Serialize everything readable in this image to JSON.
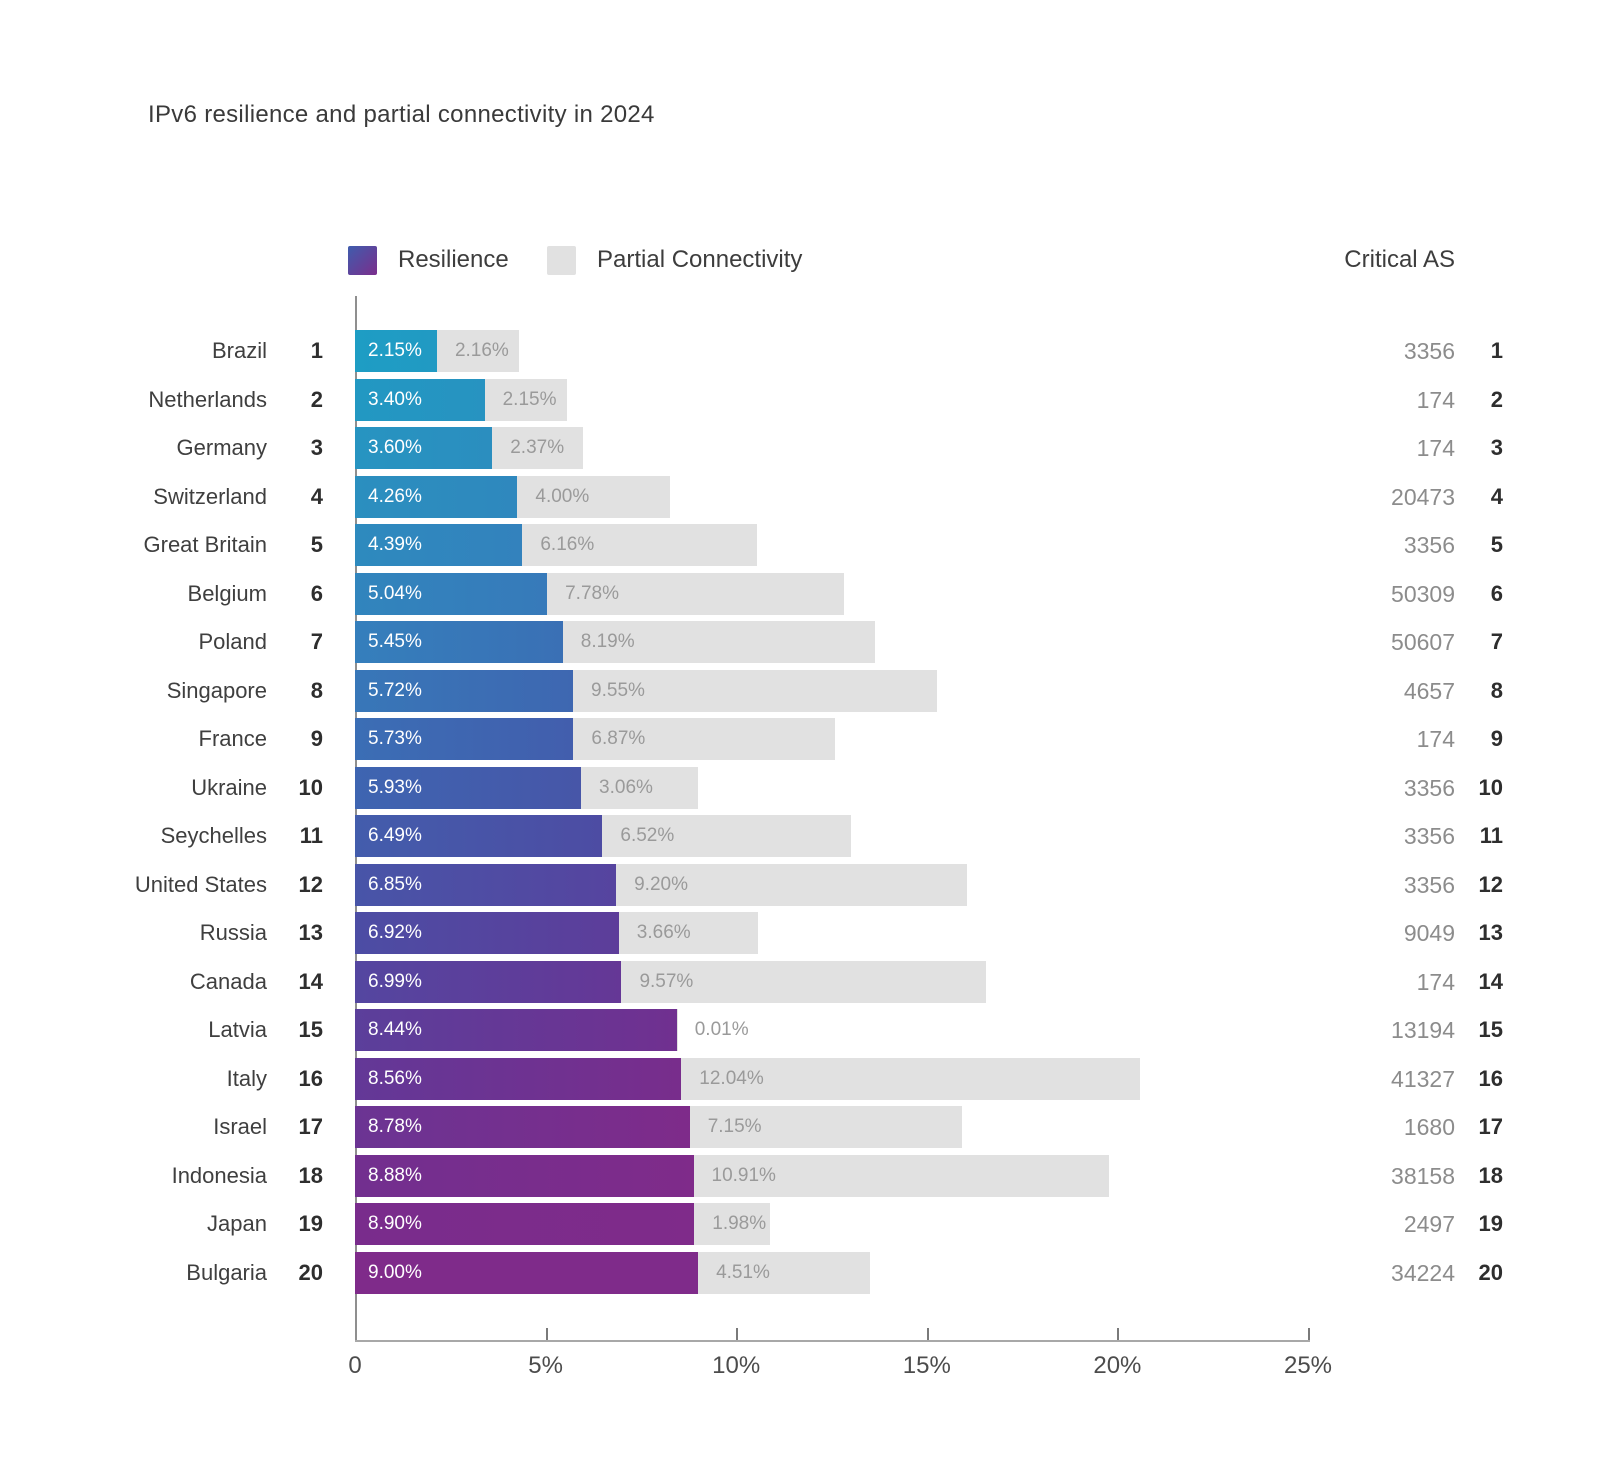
{
  "title": "IPv6 resilience and partial connectivity in 2024",
  "legend": {
    "resilience_label": "Resilience",
    "partial_label": "Partial Connectivity"
  },
  "right_column_header": "Critical AS",
  "colors": {
    "resilience_gradient_stops": [
      {
        "t": 0.0,
        "color": "#1e9dc4"
      },
      {
        "t": 0.16,
        "color": "#2b8fbf"
      },
      {
        "t": 0.32,
        "color": "#357fbc"
      },
      {
        "t": 0.47,
        "color": "#3e66b1"
      },
      {
        "t": 0.63,
        "color": "#4c4da4"
      },
      {
        "t": 0.79,
        "color": "#633897"
      },
      {
        "t": 0.92,
        "color": "#762d8d"
      },
      {
        "t": 1.0,
        "color": "#7f2b8a"
      }
    ],
    "partial_bar": "#e1e1e1",
    "partial_label_text": "#9a9a9a",
    "resilience_label_text": "#ffffff",
    "axis": "#a8a8a8"
  },
  "x_axis": {
    "ticks": [
      "0",
      "5%",
      "10%",
      "15%",
      "20%",
      "25%"
    ],
    "max_percent": 25
  },
  "rows": [
    {
      "country": "Brazil",
      "rank": "1",
      "resilience": 2.15,
      "partial": 2.16,
      "resilience_label": "2.15%",
      "partial_label": "2.16%",
      "critical_as": "3356"
    },
    {
      "country": "Netherlands",
      "rank": "2",
      "resilience": 3.4,
      "partial": 2.15,
      "resilience_label": "3.40%",
      "partial_label": "2.15%",
      "critical_as": "174"
    },
    {
      "country": "Germany",
      "rank": "3",
      "resilience": 3.6,
      "partial": 2.37,
      "resilience_label": "3.60%",
      "partial_label": "2.37%",
      "critical_as": "174"
    },
    {
      "country": "Switzerland",
      "rank": "4",
      "resilience": 4.26,
      "partial": 4.0,
      "resilience_label": "4.26%",
      "partial_label": "4.00%",
      "critical_as": "20473"
    },
    {
      "country": "Great Britain",
      "rank": "5",
      "resilience": 4.39,
      "partial": 6.16,
      "resilience_label": "4.39%",
      "partial_label": "6.16%",
      "critical_as": "3356"
    },
    {
      "country": "Belgium",
      "rank": "6",
      "resilience": 5.04,
      "partial": 7.78,
      "resilience_label": "5.04%",
      "partial_label": "7.78%",
      "critical_as": "50309"
    },
    {
      "country": "Poland",
      "rank": "7",
      "resilience": 5.45,
      "partial": 8.19,
      "resilience_label": "5.45%",
      "partial_label": "8.19%",
      "critical_as": "50607"
    },
    {
      "country": "Singapore",
      "rank": "8",
      "resilience": 5.72,
      "partial": 9.55,
      "resilience_label": "5.72%",
      "partial_label": "9.55%",
      "critical_as": "4657"
    },
    {
      "country": "France",
      "rank": "9",
      "resilience": 5.73,
      "partial": 6.87,
      "resilience_label": "5.73%",
      "partial_label": "6.87%",
      "critical_as": "174"
    },
    {
      "country": "Ukraine",
      "rank": "10",
      "resilience": 5.93,
      "partial": 3.06,
      "resilience_label": "5.93%",
      "partial_label": "3.06%",
      "critical_as": "3356"
    },
    {
      "country": "Seychelles",
      "rank": "11",
      "resilience": 6.49,
      "partial": 6.52,
      "resilience_label": "6.49%",
      "partial_label": "6.52%",
      "critical_as": "3356"
    },
    {
      "country": "United States",
      "rank": "12",
      "resilience": 6.85,
      "partial": 9.2,
      "resilience_label": "6.85%",
      "partial_label": "9.20%",
      "critical_as": "3356"
    },
    {
      "country": "Russia",
      "rank": "13",
      "resilience": 6.92,
      "partial": 3.66,
      "resilience_label": "6.92%",
      "partial_label": "3.66%",
      "critical_as": "9049"
    },
    {
      "country": "Canada",
      "rank": "14",
      "resilience": 6.99,
      "partial": 9.57,
      "resilience_label": "6.99%",
      "partial_label": "9.57%",
      "critical_as": "174"
    },
    {
      "country": "Latvia",
      "rank": "15",
      "resilience": 8.44,
      "partial": 0.01,
      "resilience_label": "8.44%",
      "partial_label": "0.01%",
      "critical_as": "13194"
    },
    {
      "country": "Italy",
      "rank": "16",
      "resilience": 8.56,
      "partial": 12.04,
      "resilience_label": "8.56%",
      "partial_label": "12.04%",
      "critical_as": "41327"
    },
    {
      "country": "Israel",
      "rank": "17",
      "resilience": 8.78,
      "partial": 7.15,
      "resilience_label": "8.78%",
      "partial_label": "7.15%",
      "critical_as": "1680"
    },
    {
      "country": "Indonesia",
      "rank": "18",
      "resilience": 8.88,
      "partial": 10.91,
      "resilience_label": "8.88%",
      "partial_label": "10.91%",
      "critical_as": "38158"
    },
    {
      "country": "Japan",
      "rank": "19",
      "resilience": 8.9,
      "partial": 1.98,
      "resilience_label": "8.90%",
      "partial_label": "1.98%",
      "critical_as": "2497"
    },
    {
      "country": "Bulgaria",
      "rank": "20",
      "resilience": 9.0,
      "partial": 4.51,
      "resilience_label": "9.00%",
      "partial_label": "4.51%",
      "critical_as": "34224"
    }
  ],
  "chart_data": {
    "type": "bar",
    "orientation": "horizontal",
    "stacked": true,
    "title": "IPv6 resilience and partial connectivity in 2024",
    "categories": [
      "Brazil",
      "Netherlands",
      "Germany",
      "Switzerland",
      "Great Britain",
      "Belgium",
      "Poland",
      "Singapore",
      "France",
      "Ukraine",
      "Seychelles",
      "United States",
      "Russia",
      "Canada",
      "Latvia",
      "Italy",
      "Israel",
      "Indonesia",
      "Japan",
      "Bulgaria"
    ],
    "series": [
      {
        "name": "Resilience",
        "values": [
          2.15,
          3.4,
          3.6,
          4.26,
          4.39,
          5.04,
          5.45,
          5.72,
          5.73,
          5.93,
          6.49,
          6.85,
          6.92,
          6.99,
          8.44,
          8.56,
          8.78,
          8.88,
          8.9,
          9.0
        ]
      },
      {
        "name": "Partial Connectivity",
        "values": [
          2.16,
          2.15,
          2.37,
          4.0,
          6.16,
          7.78,
          8.19,
          9.55,
          6.87,
          3.06,
          6.52,
          9.2,
          3.66,
          9.57,
          0.01,
          12.04,
          7.15,
          10.91,
          1.98,
          4.51
        ]
      }
    ],
    "ranks": [
      1,
      2,
      3,
      4,
      5,
      6,
      7,
      8,
      9,
      10,
      11,
      12,
      13,
      14,
      15,
      16,
      17,
      18,
      19,
      20
    ],
    "critical_as": [
      3356,
      174,
      174,
      20473,
      3356,
      50309,
      50607,
      4657,
      174,
      3356,
      3356,
      3356,
      9049,
      174,
      13194,
      41327,
      1680,
      38158,
      2497,
      34224
    ],
    "xlabel": "",
    "ylabel": "",
    "xlim": [
      0,
      25
    ],
    "x_tick_values": [
      0,
      5,
      10,
      15,
      20,
      25
    ],
    "grid": false,
    "legend_position": "top"
  }
}
